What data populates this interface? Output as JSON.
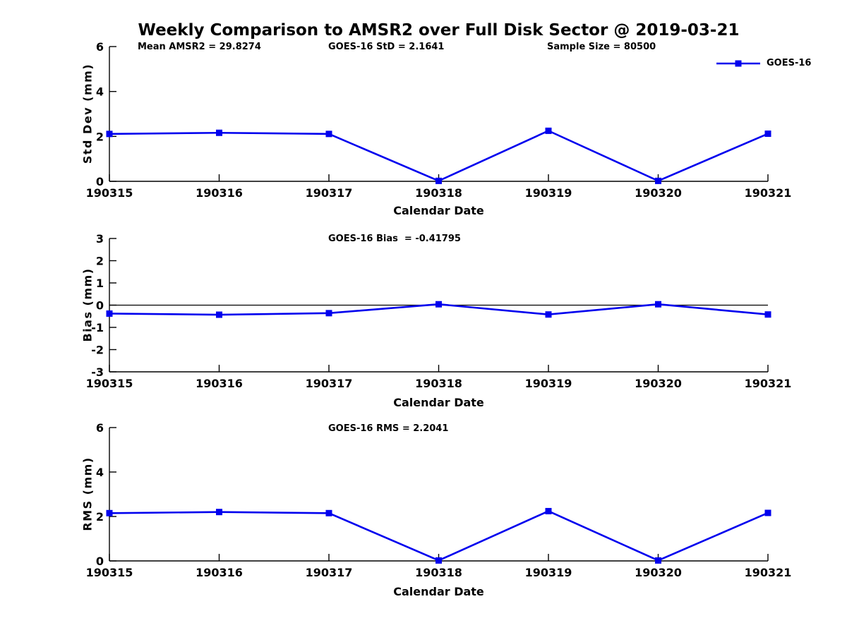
{
  "title": "Weekly Comparison to AMSR2 over Full Disk Sector @ 2019-03-21",
  "legend": {
    "label": "GOES-16"
  },
  "colors": {
    "line": "#0000EE",
    "axis": "#000000",
    "text": "#000000",
    "background": "#FFFFFF"
  },
  "chart_data": [
    {
      "type": "line",
      "annotations": [
        "Mean AMSR2 = 29.8274",
        "GOES-16 StD = 2.1641",
        "Sample Size = 80500"
      ],
      "categories": [
        "190315",
        "190316",
        "190317",
        "190318",
        "190319",
        "190320",
        "190321"
      ],
      "series": [
        {
          "name": "GOES-16",
          "values": [
            2.11,
            2.16,
            2.11,
            0.02,
            2.25,
            0.02,
            2.12
          ]
        }
      ],
      "xlabel": "Calendar Date",
      "ylabel": "Std Dev (mm)",
      "ylim": [
        0,
        6
      ],
      "yticks": [
        0,
        2,
        4,
        6
      ],
      "grid": false,
      "zero_line": false,
      "legend_position": "top-right",
      "marker": "square"
    },
    {
      "type": "line",
      "annotations": [
        "GOES-16 Bias  = -0.41795"
      ],
      "categories": [
        "190315",
        "190316",
        "190317",
        "190318",
        "190319",
        "190320",
        "190321"
      ],
      "series": [
        {
          "name": "GOES-16",
          "values": [
            -0.38,
            -0.43,
            -0.36,
            0.04,
            -0.42,
            0.04,
            -0.42
          ]
        }
      ],
      "xlabel": "Calendar Date",
      "ylabel": "Bias (mm)",
      "ylim": [
        -3,
        3
      ],
      "yticks": [
        -3,
        -2,
        -1,
        0,
        1,
        2,
        3
      ],
      "grid": false,
      "zero_line": true,
      "marker": "square"
    },
    {
      "type": "line",
      "annotations": [
        "GOES-16 RMS = 2.2041"
      ],
      "categories": [
        "190315",
        "190316",
        "190317",
        "190318",
        "190319",
        "190320",
        "190321"
      ],
      "series": [
        {
          "name": "GOES-16",
          "values": [
            2.15,
            2.2,
            2.15,
            0.02,
            2.24,
            0.02,
            2.16
          ]
        }
      ],
      "xlabel": "Calendar Date",
      "ylabel": "RMS (mm)",
      "ylim": [
        0,
        6
      ],
      "yticks": [
        0,
        2,
        4,
        6
      ],
      "grid": false,
      "zero_line": false,
      "marker": "square"
    }
  ]
}
